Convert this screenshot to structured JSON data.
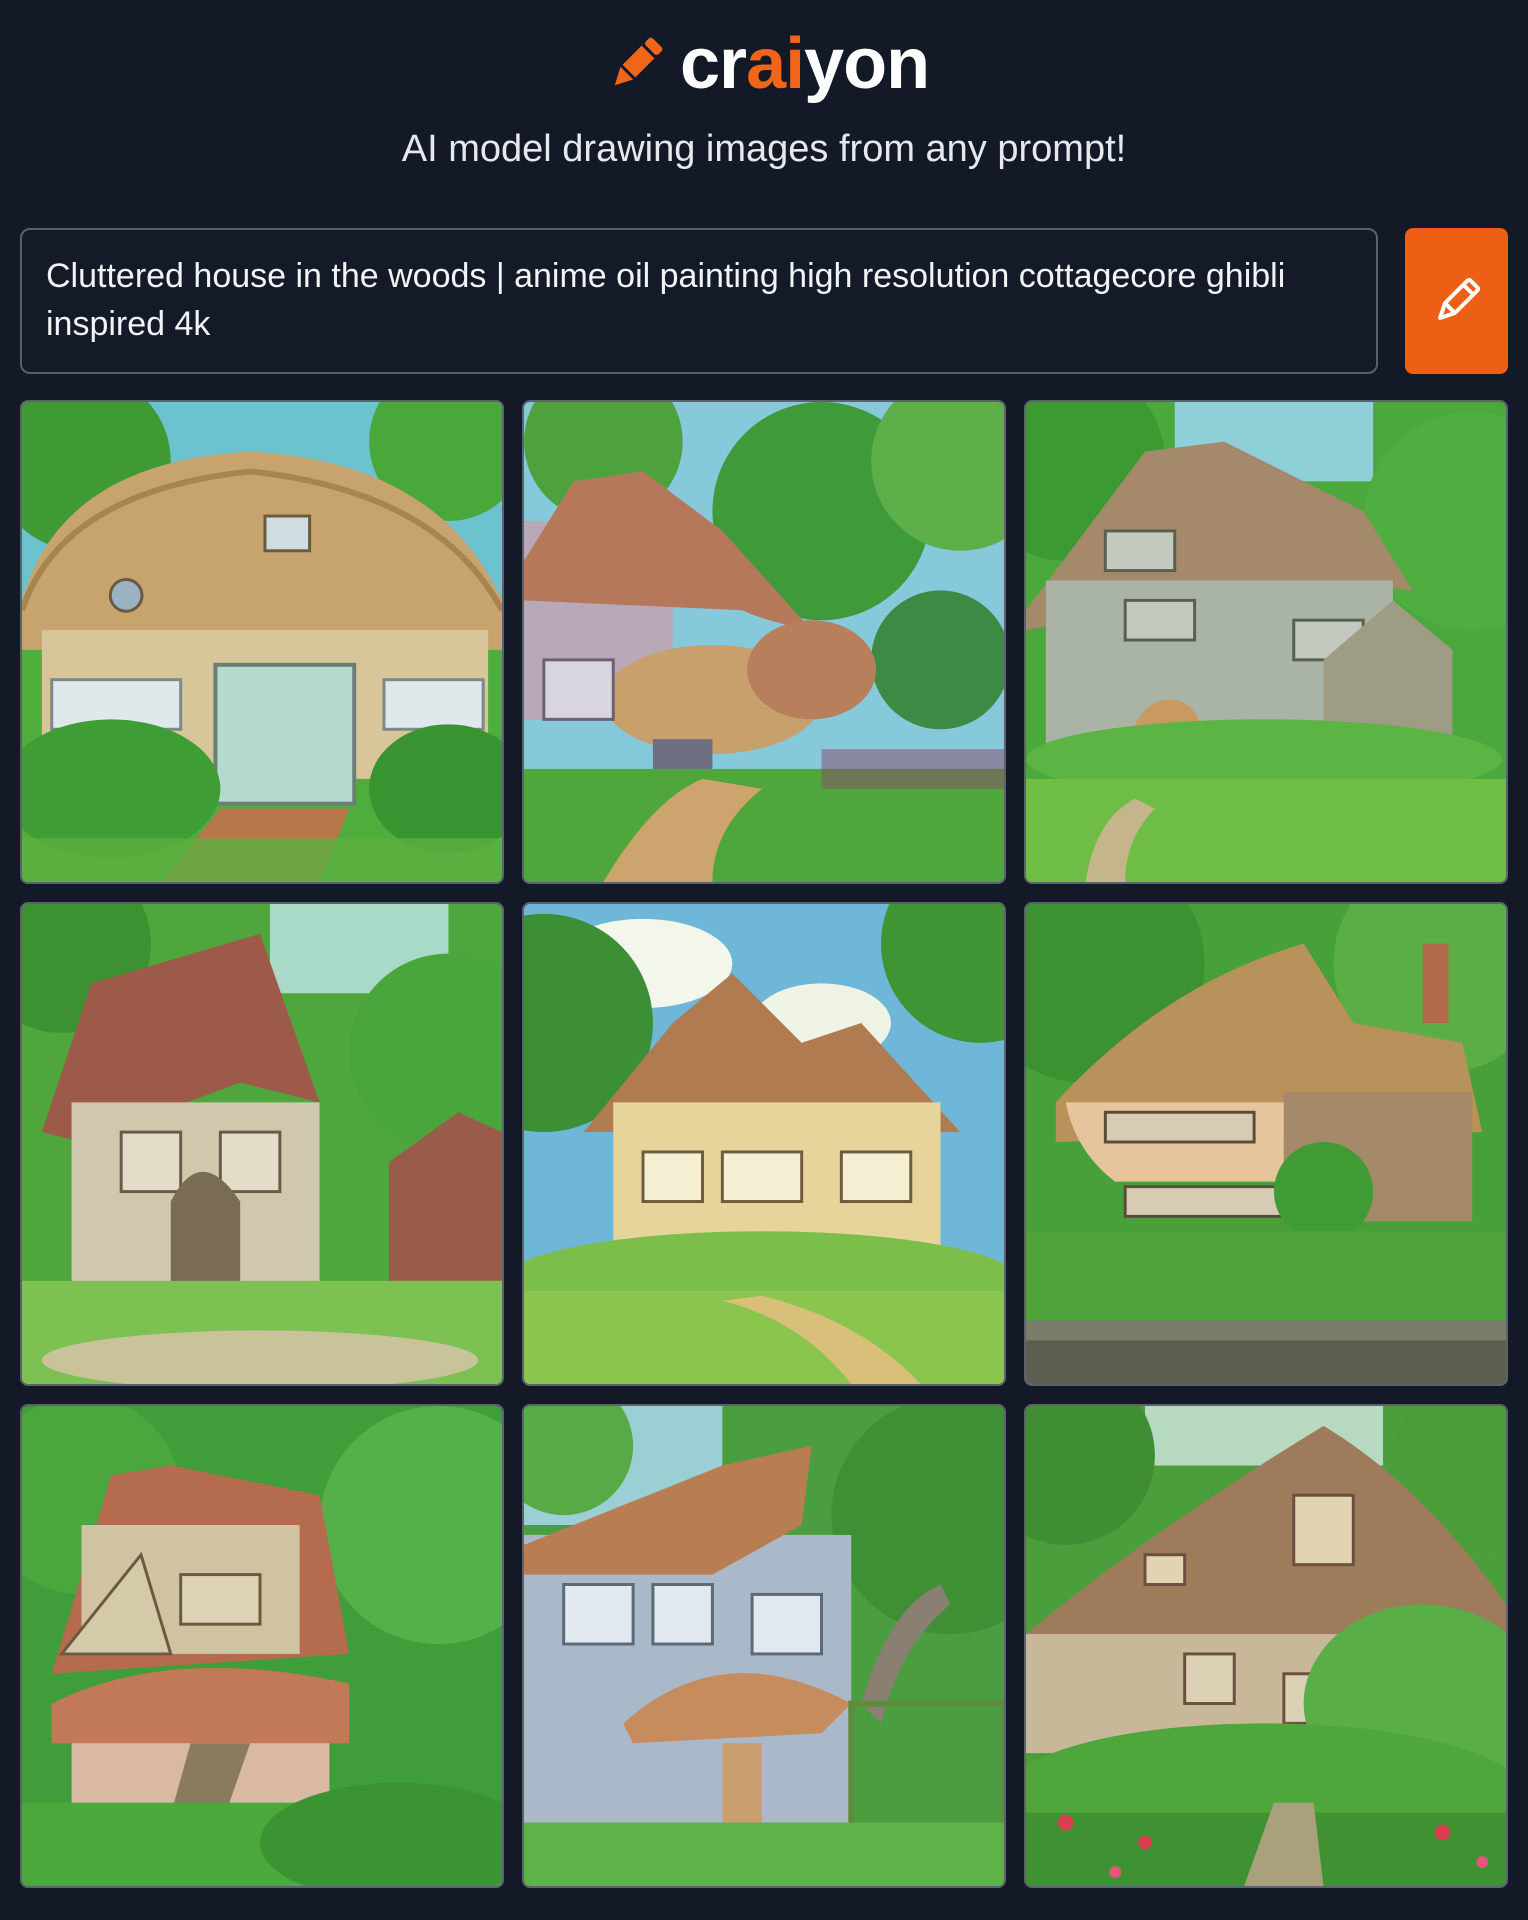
{
  "brand": {
    "name_prefix": "cr",
    "name_accent": "ai",
    "name_suffix": "yon",
    "accent_color": "#f0651a",
    "icon": "crayon-icon"
  },
  "tagline": "AI model drawing images from any prompt!",
  "prompt": {
    "value": "Cluttered house in the woods | anime oil painting high resolution cottagecore ghibli inspired 4k"
  },
  "draw_button": {
    "icon": "pencil-icon",
    "color": "#ec5f14"
  },
  "results": {
    "images": [
      {
        "subject": "thatched-cottage-with-glass-door"
      },
      {
        "subject": "mushroom-roof-house"
      },
      {
        "subject": "grey-cottage-with-thatched-roof"
      },
      {
        "subject": "tall-gabled-house-in-trees"
      },
      {
        "subject": "yellow-house-on-hill-with-path"
      },
      {
        "subject": "long-thatched-house-with-hedges"
      },
      {
        "subject": "red-roof-tower-cottage"
      },
      {
        "subject": "blue-wooden-house-with-thatch"
      },
      {
        "subject": "cottage-with-flower-garden"
      }
    ]
  }
}
